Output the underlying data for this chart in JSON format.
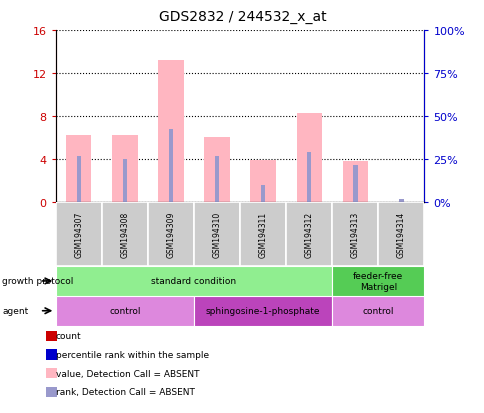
{
  "title": "GDS2832 / 244532_x_at",
  "samples": [
    "GSM194307",
    "GSM194308",
    "GSM194309",
    "GSM194310",
    "GSM194311",
    "GSM194312",
    "GSM194313",
    "GSM194314"
  ],
  "pink_bar_heights": [
    6.2,
    6.2,
    13.2,
    6.0,
    3.9,
    8.3,
    3.8,
    0.0
  ],
  "blue_bar_heights": [
    4.3,
    4.0,
    6.8,
    4.3,
    1.6,
    4.6,
    3.4,
    0.3
  ],
  "ylim_left": [
    0,
    16
  ],
  "yticks_left": [
    0,
    4,
    8,
    12,
    16
  ],
  "yticks_right": [
    0,
    25,
    50,
    75,
    100
  ],
  "ytick_labels_right": [
    "0%",
    "25%",
    "50%",
    "75%",
    "100%"
  ],
  "pink_color": "#ffb6c1",
  "blue_color": "#9999cc",
  "left_axis_color": "#cc0000",
  "right_axis_color": "#0000cc",
  "sample_box_color": "#cccccc",
  "gp_data": [
    {
      "label": "standard condition",
      "start": 0,
      "end": 6,
      "color": "#90ee90"
    },
    {
      "label": "feeder-free\nMatrigel",
      "start": 6,
      "end": 8,
      "color": "#55cc55"
    }
  ],
  "agent_data": [
    {
      "label": "control",
      "start": 0,
      "end": 3,
      "color": "#dd88dd"
    },
    {
      "label": "sphingosine-1-phosphate",
      "start": 3,
      "end": 6,
      "color": "#bb44bb"
    },
    {
      "label": "control",
      "start": 6,
      "end": 8,
      "color": "#dd88dd"
    }
  ],
  "legend_items": [
    {
      "label": "count",
      "color": "#cc0000"
    },
    {
      "label": "percentile rank within the sample",
      "color": "#0000cc"
    },
    {
      "label": "value, Detection Call = ABSENT",
      "color": "#ffb6c1"
    },
    {
      "label": "rank, Detection Call = ABSENT",
      "color": "#9999cc"
    }
  ]
}
